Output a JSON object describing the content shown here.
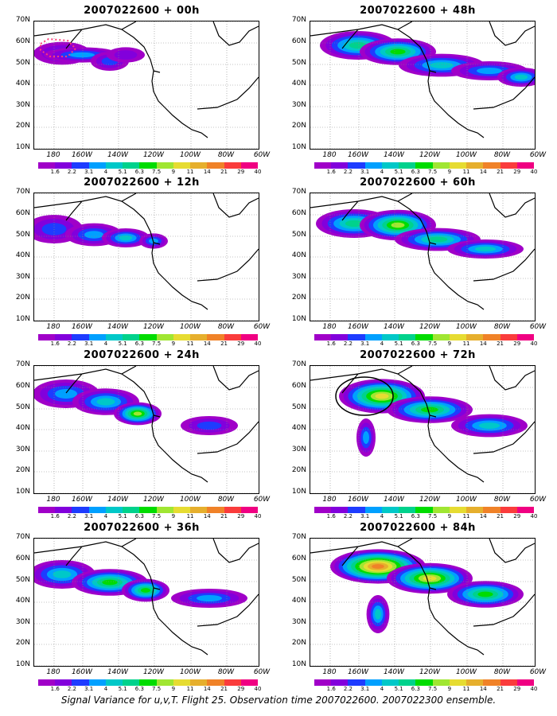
{
  "panels": [
    {
      "title": "2007022600 + 00h",
      "blobs": [
        [
          35,
          40,
          30,
          12,
          2
        ],
        [
          60,
          42,
          40,
          8,
          3
        ],
        [
          95,
          50,
          20,
          10,
          2
        ],
        [
          115,
          42,
          20,
          8,
          1
        ]
      ],
      "marker": "dotted"
    },
    {
      "title": "2007022600 + 48h",
      "blobs": [
        [
          60,
          30,
          40,
          15,
          5
        ],
        [
          110,
          38,
          40,
          14,
          6
        ],
        [
          165,
          55,
          45,
          12,
          4
        ],
        [
          225,
          62,
          40,
          10,
          3
        ],
        [
          265,
          70,
          25,
          10,
          4
        ]
      ],
      "marker": ""
    },
    {
      "title": "2007022600 + 12h",
      "blobs": [
        [
          25,
          45,
          30,
          15,
          2
        ],
        [
          75,
          52,
          30,
          12,
          3
        ],
        [
          115,
          56,
          25,
          10,
          4
        ],
        [
          150,
          60,
          15,
          8,
          3
        ]
      ],
      "marker": ""
    },
    {
      "title": "2007022600 + 60h",
      "blobs": [
        [
          55,
          38,
          40,
          15,
          5
        ],
        [
          110,
          40,
          40,
          16,
          7
        ],
        [
          160,
          58,
          45,
          12,
          5
        ],
        [
          220,
          70,
          40,
          10,
          4
        ]
      ],
      "marker": ""
    },
    {
      "title": "2007022600 + 24h",
      "blobs": [
        [
          40,
          35,
          35,
          15,
          3
        ],
        [
          90,
          45,
          35,
          14,
          4
        ],
        [
          130,
          60,
          25,
          12,
          7
        ],
        [
          220,
          75,
          30,
          10,
          2
        ]
      ],
      "marker": ""
    },
    {
      "title": "2007022600 + 72h",
      "blobs": [
        [
          90,
          38,
          45,
          18,
          8
        ],
        [
          150,
          55,
          45,
          14,
          6
        ],
        [
          225,
          75,
          40,
          12,
          4
        ],
        [
          70,
          90,
          10,
          20,
          3
        ]
      ],
      "marker": "circle"
    },
    {
      "title": "2007022600 + 36h",
      "blobs": [
        [
          35,
          45,
          35,
          15,
          4
        ],
        [
          95,
          55,
          40,
          14,
          6
        ],
        [
          140,
          65,
          25,
          12,
          6
        ],
        [
          220,
          75,
          40,
          10,
          3
        ]
      ],
      "marker": ""
    },
    {
      "title": "2007022600 + 84h",
      "blobs": [
        [
          85,
          35,
          50,
          18,
          10
        ],
        [
          150,
          50,
          45,
          16,
          8
        ],
        [
          220,
          70,
          40,
          14,
          6
        ],
        [
          85,
          95,
          12,
          20,
          4
        ]
      ],
      "marker": ""
    }
  ],
  "lat_labels": [
    "70N",
    "60N",
    "50N",
    "40N",
    "30N",
    "20N",
    "10N"
  ],
  "lon_labels": [
    "180",
    "160W",
    "140W",
    "120W",
    "100W",
    "80W",
    "60W"
  ],
  "colorbar": {
    "colors": [
      "#a000c8",
      "#8200dc",
      "#1e3cff",
      "#00a0ff",
      "#00c8c8",
      "#00d28c",
      "#00dc00",
      "#a0e632",
      "#e6dc32",
      "#e6af2d",
      "#f08228",
      "#fa3c3c",
      "#f00082"
    ],
    "labels": [
      "1.6",
      "2.2",
      "3.1",
      "4",
      "5.1",
      "6.3",
      "7.5",
      "9",
      "11",
      "14",
      "21",
      "29",
      "40"
    ]
  },
  "caption": "Signal Variance for u,v,T. Flight 25. Observation time 2007022600. 2007022300 ensemble."
}
